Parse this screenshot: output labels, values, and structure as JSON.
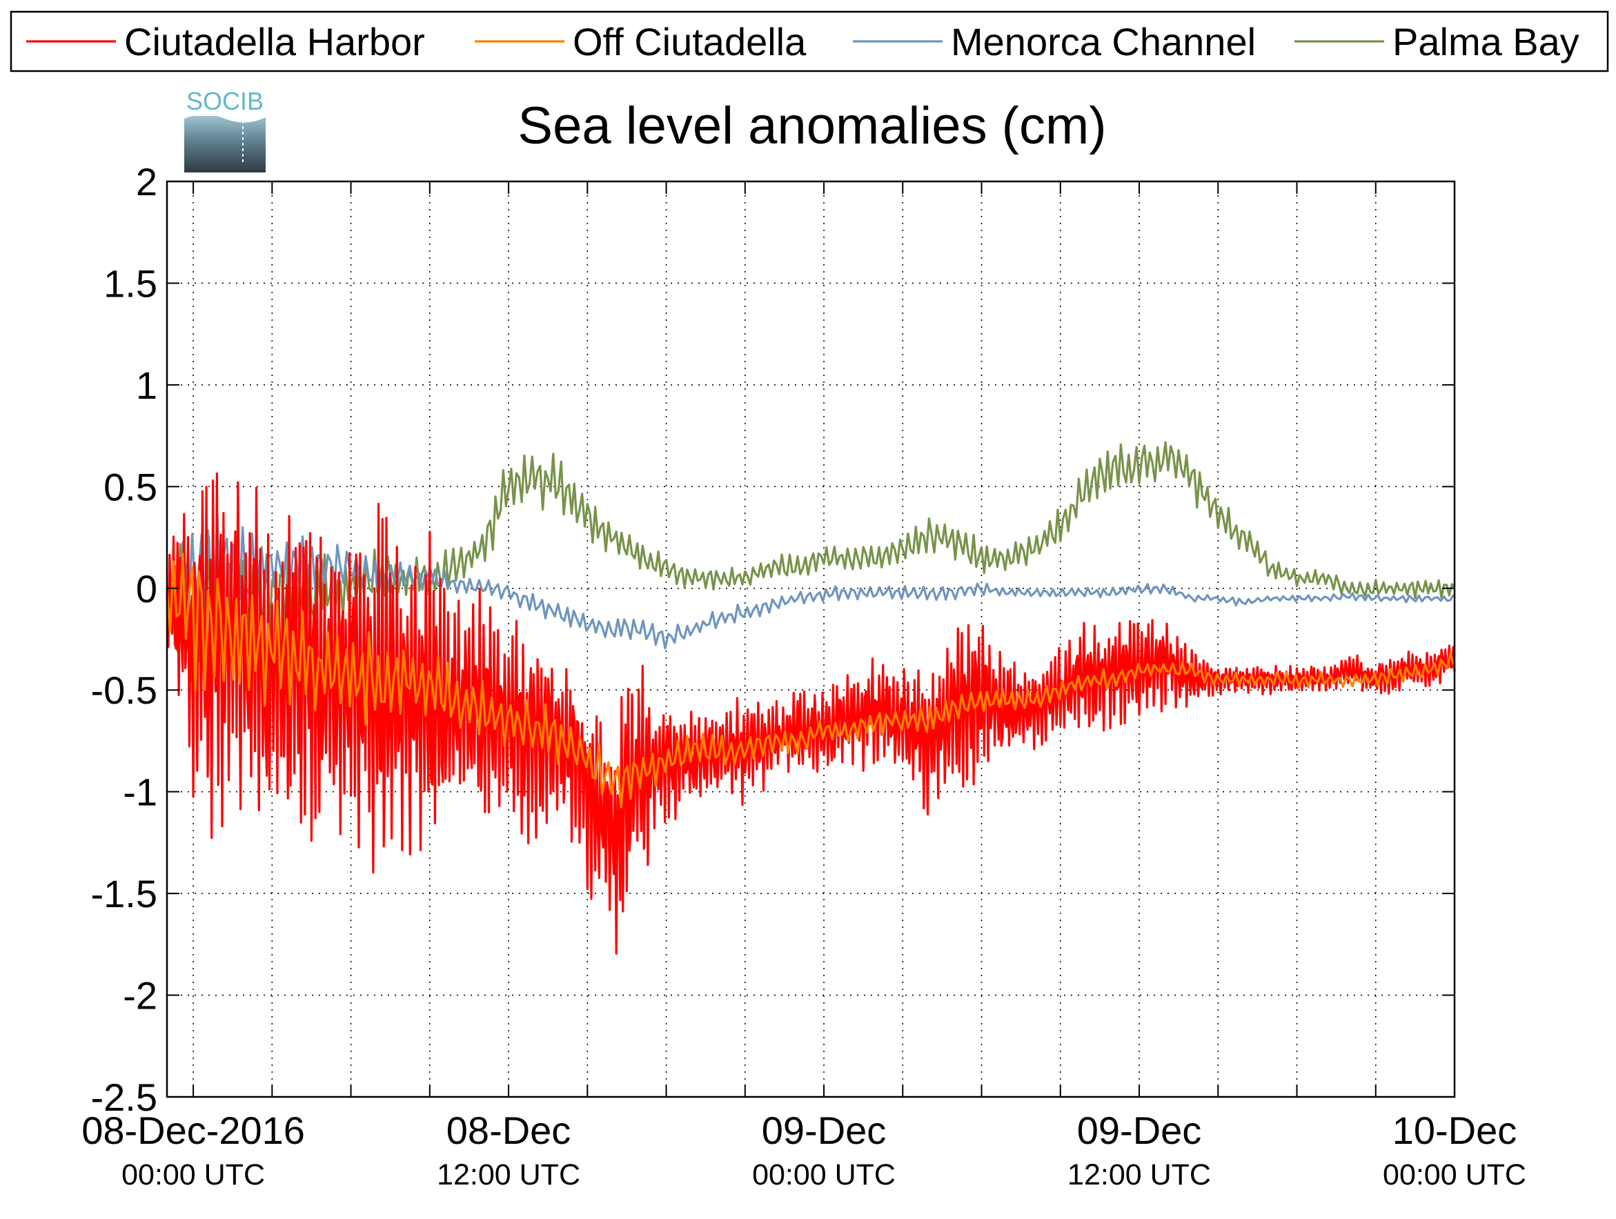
{
  "chart_data": {
    "type": "line",
    "title": "Sea level anomalies (cm)",
    "xlabel": "",
    "ylabel": "",
    "ylim": [
      -2.5,
      2
    ],
    "yticks": [
      -2.5,
      -2,
      -1.5,
      -1,
      -0.5,
      0,
      0.5,
      1,
      1.5,
      2
    ],
    "ytick_labels": [
      "-2.5",
      "-2",
      "-1.5",
      "-1",
      "-0.5",
      "0",
      "0.5",
      "1",
      "1.5",
      "2"
    ],
    "xlim_hours": [
      -1,
      48
    ],
    "x_tick_labels": [
      {
        "line1": "08-Dec-2016",
        "line2": "00:00 UTC"
      },
      {
        "line1": "08-Dec",
        "line2": "12:00 UTC"
      },
      {
        "line1": "09-Dec",
        "line2": "00:00 UTC"
      },
      {
        "line1": "09-Dec",
        "line2": "12:00 UTC"
      },
      {
        "line1": "10-Dec",
        "line2": "00:00 UTC"
      }
    ],
    "x_grid_hours": [
      0,
      3,
      6,
      9,
      12,
      15,
      18,
      21,
      24,
      27,
      30,
      33,
      36,
      39,
      42,
      45,
      48
    ],
    "grid": true,
    "legend_position": "top",
    "logo_text": "SOCIB",
    "series": [
      {
        "name": "Ciutadella Harbor",
        "color": "#ff0000",
        "x_hours": [
          -1,
          0,
          1,
          2,
          3,
          4,
          5,
          6,
          7,
          8,
          9,
          10,
          11,
          12,
          13,
          14,
          15,
          16,
          17,
          18,
          19,
          20,
          21,
          22,
          23,
          24,
          25,
          26,
          27,
          28,
          29,
          30,
          31,
          32,
          33,
          34,
          35,
          36,
          37,
          38,
          39,
          40,
          41,
          42,
          43,
          44,
          45,
          46,
          47,
          48
        ],
        "center": [
          0.0,
          -0.3,
          -0.2,
          -0.3,
          -0.35,
          -0.4,
          -0.45,
          -0.5,
          -0.5,
          -0.5,
          -0.55,
          -0.55,
          -0.6,
          -0.65,
          -0.7,
          -0.75,
          -0.95,
          -1.2,
          -0.9,
          -0.85,
          -0.85,
          -0.8,
          -0.8,
          -0.75,
          -0.7,
          -0.7,
          -0.65,
          -0.6,
          -0.65,
          -0.75,
          -0.6,
          -0.55,
          -0.6,
          -0.6,
          -0.5,
          -0.45,
          -0.4,
          -0.4,
          -0.35,
          -0.45,
          -0.45,
          -0.45,
          -0.45,
          -0.45,
          -0.45,
          -0.4,
          -0.45,
          -0.4,
          -0.4,
          -0.35
        ],
        "amplitude": [
          0.3,
          0.9,
          1.1,
          1.0,
          0.95,
          0.85,
          1.0,
          0.9,
          1.05,
          0.9,
          0.85,
          0.6,
          0.6,
          0.65,
          0.6,
          0.5,
          0.55,
          0.7,
          0.55,
          0.35,
          0.3,
          0.3,
          0.3,
          0.25,
          0.25,
          0.2,
          0.25,
          0.3,
          0.35,
          0.45,
          0.5,
          0.4,
          0.3,
          0.2,
          0.25,
          0.3,
          0.3,
          0.28,
          0.25,
          0.15,
          0.08,
          0.08,
          0.08,
          0.08,
          0.08,
          0.08,
          0.1,
          0.12,
          0.12,
          0.12
        ]
      },
      {
        "name": "Off Ciutadella",
        "color": "#ff8000",
        "x_hours": [
          -1,
          0,
          1,
          2,
          3,
          4,
          5,
          6,
          7,
          8,
          9,
          10,
          11,
          12,
          13,
          14,
          15,
          16,
          17,
          18,
          19,
          20,
          21,
          22,
          23,
          24,
          25,
          26,
          27,
          28,
          29,
          30,
          31,
          32,
          33,
          34,
          35,
          36,
          37,
          38,
          39,
          40,
          41,
          42,
          43,
          44,
          45,
          46,
          47,
          48
        ],
        "center": [
          0.0,
          -0.1,
          -0.2,
          -0.25,
          -0.3,
          -0.35,
          -0.4,
          -0.4,
          -0.45,
          -0.45,
          -0.5,
          -0.55,
          -0.6,
          -0.65,
          -0.7,
          -0.75,
          -0.85,
          -0.95,
          -0.9,
          -0.85,
          -0.8,
          -0.8,
          -0.8,
          -0.75,
          -0.75,
          -0.7,
          -0.7,
          -0.65,
          -0.65,
          -0.65,
          -0.6,
          -0.55,
          -0.55,
          -0.55,
          -0.5,
          -0.45,
          -0.45,
          -0.4,
          -0.4,
          -0.4,
          -0.45,
          -0.45,
          -0.45,
          -0.45,
          -0.45,
          -0.45,
          -0.45,
          -0.42,
          -0.4,
          -0.35
        ],
        "amplitude": [
          0.2,
          0.45,
          0.35,
          0.3,
          0.3,
          0.28,
          0.3,
          0.25,
          0.25,
          0.22,
          0.2,
          0.18,
          0.16,
          0.15,
          0.15,
          0.15,
          0.15,
          0.15,
          0.12,
          0.1,
          0.1,
          0.1,
          0.08,
          0.08,
          0.08,
          0.06,
          0.06,
          0.07,
          0.07,
          0.08,
          0.08,
          0.07,
          0.06,
          0.06,
          0.06,
          0.06,
          0.05,
          0.05,
          0.04,
          0.04,
          0.04,
          0.04,
          0.04,
          0.04,
          0.04,
          0.04,
          0.04,
          0.05,
          0.05,
          0.05
        ]
      },
      {
        "name": "Menorca Channel",
        "color": "#6e95bd",
        "x_hours": [
          -1,
          0,
          1,
          2,
          3,
          4,
          5,
          6,
          7,
          8,
          9,
          10,
          11,
          12,
          13,
          14,
          15,
          16,
          17,
          18,
          19,
          20,
          21,
          22,
          23,
          24,
          25,
          26,
          27,
          28,
          29,
          30,
          31,
          32,
          33,
          34,
          35,
          36,
          37,
          38,
          39,
          40,
          41,
          42,
          43,
          44,
          45,
          46,
          47,
          48
        ],
        "center": [
          0.0,
          0.1,
          0.1,
          0.1,
          0.1,
          0.12,
          0.1,
          0.1,
          0.05,
          0.05,
          0.05,
          0.02,
          0.0,
          -0.02,
          -0.08,
          -0.12,
          -0.18,
          -0.2,
          -0.2,
          -0.25,
          -0.2,
          -0.15,
          -0.12,
          -0.08,
          -0.05,
          -0.03,
          -0.02,
          -0.02,
          -0.02,
          -0.03,
          -0.02,
          0.0,
          -0.02,
          -0.02,
          -0.02,
          -0.02,
          -0.02,
          0.0,
          0.0,
          -0.05,
          -0.05,
          -0.07,
          -0.05,
          -0.05,
          -0.05,
          -0.04,
          -0.05,
          -0.05,
          -0.05,
          -0.05
        ],
        "amplitude": [
          0.1,
          0.3,
          0.3,
          0.25,
          0.2,
          0.18,
          0.15,
          0.12,
          0.1,
          0.08,
          0.07,
          0.05,
          0.05,
          0.05,
          0.06,
          0.06,
          0.05,
          0.06,
          0.06,
          0.06,
          0.05,
          0.05,
          0.05,
          0.04,
          0.04,
          0.04,
          0.04,
          0.04,
          0.04,
          0.04,
          0.04,
          0.04,
          0.03,
          0.03,
          0.03,
          0.03,
          0.03,
          0.03,
          0.03,
          0.02,
          0.02,
          0.02,
          0.02,
          0.02,
          0.02,
          0.02,
          0.02,
          0.02,
          0.02,
          0.02
        ]
      },
      {
        "name": "Palma Bay",
        "color": "#77934a",
        "x_hours": [
          -1,
          0,
          1,
          2,
          3,
          4,
          5,
          6,
          7,
          8,
          9,
          10,
          11,
          12,
          13,
          14,
          15,
          16,
          17,
          18,
          19,
          20,
          21,
          22,
          23,
          24,
          25,
          26,
          27,
          28,
          29,
          30,
          31,
          32,
          33,
          34,
          35,
          36,
          37,
          38,
          39,
          40,
          41,
          42,
          43,
          44,
          45,
          46,
          47,
          48
        ],
        "center": [
          0.0,
          -0.1,
          -0.15,
          -0.1,
          -0.05,
          -0.05,
          0.0,
          0.0,
          0.05,
          0.05,
          0.05,
          0.1,
          0.2,
          0.5,
          0.55,
          0.5,
          0.35,
          0.25,
          0.15,
          0.1,
          0.05,
          0.05,
          0.05,
          0.1,
          0.1,
          0.15,
          0.15,
          0.15,
          0.2,
          0.25,
          0.25,
          0.15,
          0.15,
          0.2,
          0.3,
          0.5,
          0.6,
          0.6,
          0.65,
          0.55,
          0.35,
          0.25,
          0.1,
          0.05,
          0.05,
          0.0,
          0.0,
          0.0,
          0.0,
          0.0
        ],
        "amplitude": [
          0.2,
          0.5,
          0.4,
          0.35,
          0.3,
          0.25,
          0.2,
          0.15,
          0.15,
          0.12,
          0.12,
          0.12,
          0.12,
          0.15,
          0.15,
          0.15,
          0.12,
          0.1,
          0.08,
          0.08,
          0.07,
          0.06,
          0.06,
          0.07,
          0.08,
          0.08,
          0.08,
          0.08,
          0.1,
          0.12,
          0.12,
          0.1,
          0.08,
          0.08,
          0.1,
          0.12,
          0.12,
          0.12,
          0.12,
          0.12,
          0.1,
          0.08,
          0.06,
          0.05,
          0.05,
          0.05,
          0.05,
          0.05,
          0.05,
          0.05
        ]
      }
    ]
  }
}
